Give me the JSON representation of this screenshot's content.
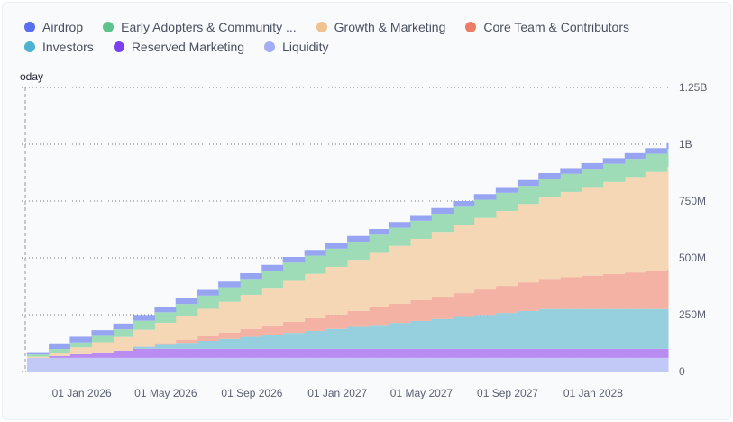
{
  "chart_data": {
    "type": "area",
    "subtype": "stacked-step",
    "title": "",
    "xlabel": "",
    "ylabel": "",
    "ylim": [
      0,
      1250000000
    ],
    "y_ticks": [
      {
        "value": 0,
        "label": "0"
      },
      {
        "value": 250000000,
        "label": "250M"
      },
      {
        "value": 500000000,
        "label": "500M"
      },
      {
        "value": 750000000,
        "label": "750M"
      },
      {
        "value": 1000000000,
        "label": "1B"
      },
      {
        "value": 1250000000,
        "label": "1.25B"
      }
    ],
    "x_ticks": [
      {
        "date": "2026-01-01",
        "label": "01 Jan 2026"
      },
      {
        "date": "2026-05-01",
        "label": "01 May 2026"
      },
      {
        "date": "2026-09-01",
        "label": "01 Sep 2026"
      },
      {
        "date": "2027-01-01",
        "label": "01 Jan 2027"
      },
      {
        "date": "2027-05-01",
        "label": "01 May 2027"
      },
      {
        "date": "2027-09-01",
        "label": "01 Sep 2027"
      },
      {
        "date": "2028-01-01",
        "label": "01 Jan 2028"
      }
    ],
    "x_start": "2025-10-15",
    "x_end": "2028-04-17",
    "step_interval": "monthly",
    "today_marker": {
      "label": "oday",
      "date": "2025-10-13"
    },
    "grid": true,
    "legend_position": "top-left",
    "series": [
      {
        "name": "Liquidity",
        "color": "#c3c9f6",
        "legend_color": "#a3adf3",
        "values": [
          60,
          60,
          60,
          60,
          60,
          60,
          60,
          60,
          60,
          60,
          60,
          60,
          60,
          60,
          60,
          60,
          60,
          60,
          60,
          60,
          60,
          60,
          60,
          60,
          60,
          60,
          60,
          60,
          60,
          60,
          60
        ]
      },
      {
        "name": "Reserved Marketing",
        "color": "#b98cf2",
        "legend_color": "#7b3ff0",
        "values": [
          0,
          8,
          16,
          24,
          32,
          40,
          40,
          40,
          40,
          40,
          40,
          40,
          40,
          40,
          40,
          40,
          40,
          40,
          40,
          40,
          40,
          40,
          40,
          40,
          40,
          40,
          40,
          40,
          40,
          40,
          40
        ]
      },
      {
        "name": "Investors",
        "color": "#96d0de",
        "legend_color": "#4fb3cf",
        "values": [
          0,
          0,
          0,
          0,
          0,
          8.75,
          17.5,
          26.25,
          35,
          43.75,
          52.5,
          61.25,
          70,
          78.75,
          87.5,
          96.25,
          105,
          113.75,
          122.5,
          131.25,
          140,
          148.75,
          157.5,
          166.25,
          175,
          175,
          175,
          175,
          175,
          175,
          175
        ]
      },
      {
        "name": "Core Team & Contributors",
        "color": "#f3b2a3",
        "legend_color": "#ec7c68",
        "values": [
          0,
          0,
          0,
          0,
          0,
          0,
          7,
          14,
          21,
          28,
          35,
          42,
          49,
          56,
          63,
          70,
          77,
          84,
          91,
          98,
          105,
          112,
          119,
          126,
          133,
          140,
          147,
          154,
          161,
          168,
          175
        ]
      },
      {
        "name": "Growth & Marketing",
        "color": "#f5d7b5",
        "legend_color": "#efc28f",
        "values": [
          5,
          15,
          30,
          45,
          60,
          75,
          90,
          105,
          120,
          135,
          150,
          165,
          180,
          195,
          210,
          225,
          240,
          255,
          270,
          285,
          300,
          315,
          330,
          345,
          360,
          375,
          390,
          405,
          420,
          435,
          450
        ]
      },
      {
        "name": "Early Adopters & Community ...",
        "color": "#9edcb8",
        "legend_color": "#5ec48c",
        "values": [
          10,
          16,
          22,
          28,
          34,
          40,
          46,
          52,
          58,
          64,
          70,
          76,
          80,
          80,
          80,
          80,
          80,
          80,
          80,
          80,
          80,
          80,
          80,
          80,
          80,
          80,
          80,
          80,
          80,
          80,
          80
        ]
      },
      {
        "name": "Airdrop",
        "color": "#97a4f1",
        "legend_color": "#5a6ef0",
        "values": [
          10,
          25,
          25,
          25,
          25,
          25,
          25,
          25,
          25,
          25,
          25,
          25,
          25,
          25,
          25,
          25,
          25,
          25,
          25,
          25,
          25,
          25,
          25,
          25,
          25,
          25,
          25,
          25,
          25,
          25,
          25
        ]
      }
    ],
    "value_unit": "M tokens",
    "legend_order": [
      "Airdrop",
      "Early Adopters & Community ...",
      "Growth & Marketing",
      "Core Team & Contributors",
      "Investors",
      "Reserved Marketing",
      "Liquidity"
    ]
  }
}
